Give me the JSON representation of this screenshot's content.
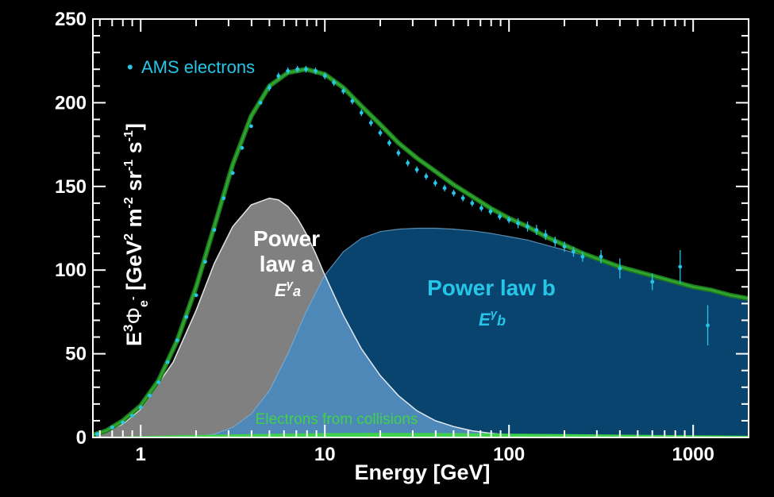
{
  "chart_data": {
    "type": "line",
    "title": "",
    "xlabel": "Energy [GeV]",
    "ylabel": {
      "prefix": "E",
      "sup3": "3",
      "phi": "Φ",
      "sub": "e",
      "subsup": "-",
      "units": " [GeV",
      "u2": "2",
      "m": " m",
      "um2": "-2",
      "sr": " sr",
      "um1a": "-1",
      "s": " s",
      "um1b": "-1",
      "close": "]"
    },
    "x_scale": "log",
    "xlim": [
      0.55,
      2000
    ],
    "ylim": [
      0,
      250
    ],
    "x_ticks": [
      1,
      10,
      100,
      1000
    ],
    "x_tick_labels": [
      "1",
      "10",
      "100",
      "1000"
    ],
    "y_ticks": [
      0,
      50,
      100,
      150,
      200,
      250
    ],
    "y_tick_labels": [
      "0",
      "50",
      "100",
      "150",
      "200",
      "250"
    ],
    "grid": false,
    "legend": {
      "placement": "top-left",
      "marker": "•",
      "label": "AMS electrons"
    },
    "colors": {
      "background": "#000000",
      "ams": "#26c6e8",
      "total_fit": "#1f7a1f",
      "power_law_a": "#808080",
      "power_law_b": "#0a4a78",
      "overlap": "#4d88b8",
      "collisions": "#3fd24a"
    },
    "annotations": {
      "power_law_a": {
        "line1": "Power",
        "line2": "law a",
        "formula_base": "E",
        "formula_sup": "γ",
        "formula_sub": "a"
      },
      "power_law_b": {
        "line1": "Power law b",
        "formula_base": "E",
        "formula_sup": "γ",
        "formula_sub": "b"
      },
      "collisions": "Electrons from collisions"
    },
    "series": [
      {
        "name": "AMS electrons",
        "kind": "points",
        "x": [
          0.58,
          0.7,
          0.8,
          0.9,
          1.0,
          1.12,
          1.25,
          1.4,
          1.58,
          1.77,
          2.0,
          2.24,
          2.51,
          2.82,
          3.16,
          3.55,
          3.98,
          4.47,
          5.0,
          5.6,
          6.3,
          7.1,
          7.9,
          8.9,
          10.0,
          11.2,
          12.6,
          14.1,
          15.8,
          17.8,
          20.0,
          22.4,
          25.1,
          28.2,
          31.6,
          35.5,
          39.8,
          44.7,
          50.1,
          56.2,
          63.1,
          70.8,
          79.4,
          89.1,
          100,
          112,
          126,
          141,
          158,
          178,
          200,
          224,
          251,
          316,
          400,
          600,
          850,
          1200
        ],
        "y": [
          2,
          6,
          9,
          13,
          18,
          25,
          33,
          45,
          58,
          72,
          85,
          105,
          124,
          143,
          158,
          173,
          186,
          200,
          209,
          216,
          219,
          220,
          220,
          219,
          216,
          212,
          207,
          201,
          194,
          188,
          182,
          176,
          170,
          164,
          160,
          156,
          152,
          149,
          146,
          143,
          140,
          137,
          135,
          132,
          130,
          128,
          126,
          124,
          121,
          117,
          114,
          111,
          108,
          108,
          101,
          93,
          102,
          67
        ],
        "err": [
          0.5,
          0.5,
          0.5,
          0.5,
          0.5,
          0.5,
          0.5,
          0.5,
          0.5,
          1,
          1,
          1,
          1,
          1,
          1,
          1,
          1,
          1,
          2,
          2,
          2,
          2,
          2,
          2,
          2,
          2,
          2,
          2,
          2,
          2,
          2,
          2,
          2,
          2,
          2,
          2,
          2,
          2,
          2,
          2,
          2,
          2,
          2,
          2,
          2,
          3,
          3,
          3,
          3,
          3,
          3,
          3,
          3,
          4,
          6,
          5,
          10,
          12
        ]
      },
      {
        "name": "Total fit",
        "kind": "line",
        "x": [
          0.55,
          0.65,
          0.8,
          1.0,
          1.25,
          1.58,
          2.0,
          2.51,
          3.16,
          3.98,
          5.0,
          6.3,
          7.9,
          10,
          12.6,
          15.8,
          20,
          25.1,
          31.6,
          39.8,
          50.1,
          63.1,
          79.4,
          100,
          126,
          158,
          200,
          251,
          316,
          398,
          501,
          631,
          794,
          1000,
          1259,
          1585,
          2000
        ],
        "y": [
          1.5,
          4,
          10,
          19,
          34,
          58,
          90,
          126,
          163,
          192,
          210,
          218,
          220,
          217,
          209,
          198,
          187,
          176,
          167,
          159,
          151,
          144,
          137,
          131,
          126,
          120,
          115,
          110,
          106,
          102,
          99,
          96,
          93,
          90,
          88,
          85,
          83
        ]
      },
      {
        "name": "Power law a",
        "kind": "area",
        "x": [
          0.55,
          0.8,
          1.0,
          1.5,
          2.0,
          2.51,
          3.16,
          3.98,
          5.0,
          5.6,
          6.3,
          7.1,
          7.9,
          8.9,
          10,
          12.6,
          15.8,
          20,
          25.1,
          31.6,
          39.8,
          50.1,
          63.1,
          79.4,
          100,
          126,
          158,
          200,
          251,
          316,
          398
        ],
        "y": [
          0.5,
          8,
          17,
          45,
          76,
          104,
          126,
          139,
          143,
          142,
          138,
          131,
          122,
          110,
          97,
          73,
          53,
          37,
          25,
          16,
          10,
          6.5,
          4,
          2.5,
          1.5,
          1,
          0.7,
          0.5,
          0.3,
          0.2,
          0.1
        ]
      },
      {
        "name": "Power law b",
        "kind": "area",
        "x": [
          1.5,
          2.0,
          2.51,
          3.16,
          3.98,
          5.0,
          6.3,
          7.9,
          10,
          12.6,
          15.8,
          20,
          25.1,
          31.6,
          39.8,
          50.1,
          63.1,
          79.4,
          100,
          126,
          158,
          200,
          251,
          316,
          398,
          501,
          631,
          794,
          1000,
          1259,
          1585,
          2000
        ],
        "y": [
          0,
          0.5,
          2,
          6,
          14,
          28,
          50,
          75,
          97,
          111,
          119,
          123,
          124.5,
          125,
          125,
          124.5,
          123.5,
          122,
          120,
          118,
          115,
          112,
          109,
          106,
          103,
          100,
          97,
          94,
          91,
          88,
          86,
          83
        ]
      },
      {
        "name": "Electrons from collisions",
        "kind": "area",
        "x": [
          0.55,
          1,
          2,
          5,
          10,
          20,
          50,
          100,
          200,
          500,
          1000,
          2000
        ],
        "y": [
          0.3,
          0.8,
          1.5,
          2.2,
          2.6,
          2.7,
          2.6,
          2.3,
          2.0,
          1.6,
          1.3,
          1.0
        ]
      }
    ]
  }
}
